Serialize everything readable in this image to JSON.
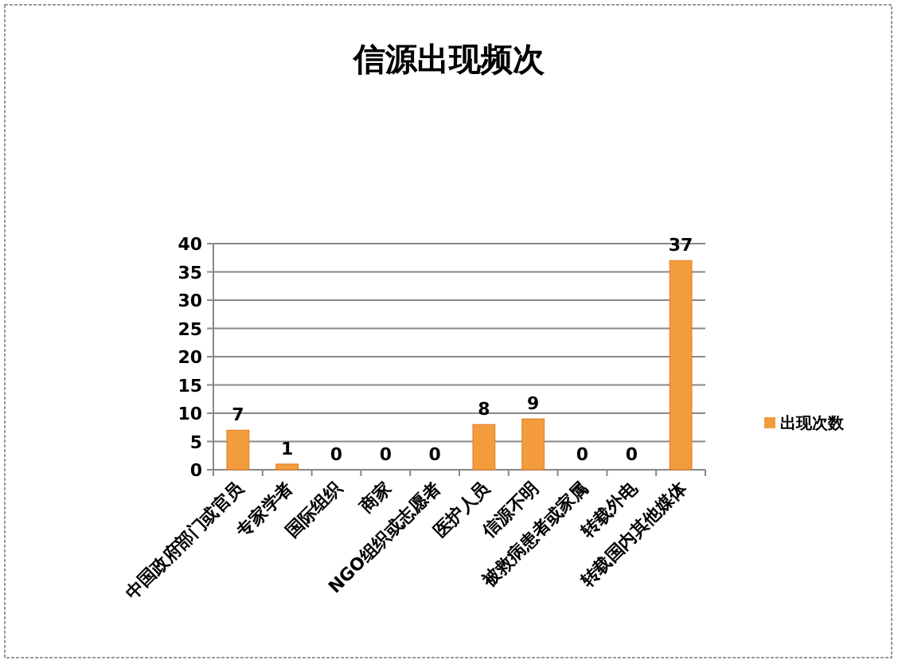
{
  "chart_data": {
    "type": "bar",
    "title": "信源出现频次",
    "categories": [
      "中国政府部门或官员",
      "专家学者",
      "国际组织",
      "商家",
      "NGO组织或志愿者",
      "医护人员",
      "信源不明",
      "被救病患者或家属",
      "转载外电",
      "转载国内其他媒体"
    ],
    "series": [
      {
        "name": "出现次数",
        "color": "#f39c3c",
        "values": [
          7,
          1,
          0,
          0,
          0,
          8,
          9,
          0,
          0,
          37
        ]
      }
    ],
    "ylim": [
      0,
      40
    ],
    "yticks": [
      0,
      5,
      10,
      15,
      20,
      25,
      30,
      35,
      40
    ],
    "grid": "y",
    "legend": "right",
    "data_labels": true
  }
}
